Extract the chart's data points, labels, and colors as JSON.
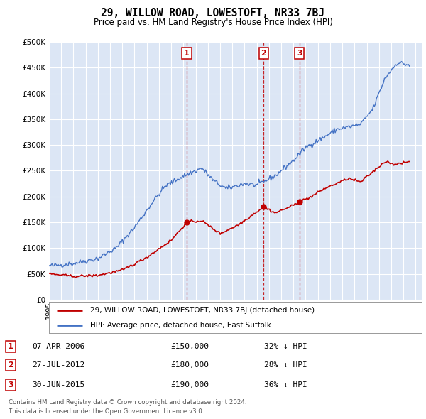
{
  "title": "29, WILLOW ROAD, LOWESTOFT, NR33 7BJ",
  "subtitle": "Price paid vs. HM Land Registry's House Price Index (HPI)",
  "background_color": "#ffffff",
  "plot_bg_color": "#dce6f5",
  "grid_color": "#ffffff",
  "hpi_color": "#4472c4",
  "price_color": "#c00000",
  "transactions": [
    {
      "num": 1,
      "date_x": 2006.27,
      "price": 150000,
      "label": "07-APR-2006",
      "pct": "32%"
    },
    {
      "num": 2,
      "date_x": 2012.57,
      "price": 180000,
      "label": "27-JUL-2012",
      "pct": "28%"
    },
    {
      "num": 3,
      "date_x": 2015.5,
      "price": 190000,
      "label": "30-JUN-2015",
      "pct": "36%"
    }
  ],
  "legend_label_price": "29, WILLOW ROAD, LOWESTOFT, NR33 7BJ (detached house)",
  "legend_label_hpi": "HPI: Average price, detached house, East Suffolk",
  "footer_line1": "Contains HM Land Registry data © Crown copyright and database right 2024.",
  "footer_line2": "This data is licensed under the Open Government Licence v3.0.",
  "ylim": [
    0,
    500000
  ],
  "xlim_start": 1995.0,
  "xlim_end": 2025.5,
  "yticks": [
    0,
    50000,
    100000,
    150000,
    200000,
    250000,
    300000,
    350000,
    400000,
    450000,
    500000
  ],
  "hpi_anchors_x": [
    1995.0,
    1997.0,
    1999.0,
    2000.5,
    2002.0,
    2003.5,
    2004.5,
    2006.0,
    2007.5,
    2008.5,
    2009.5,
    2011.0,
    2012.0,
    2013.5,
    2015.0,
    2016.0,
    2017.5,
    2018.5,
    2019.5,
    2020.5,
    2021.5,
    2022.5,
    2023.5,
    2024.5
  ],
  "hpi_anchors_y": [
    65000,
    70000,
    80000,
    100000,
    140000,
    190000,
    220000,
    240000,
    255000,
    230000,
    215000,
    225000,
    222000,
    240000,
    270000,
    295000,
    315000,
    330000,
    335000,
    340000,
    370000,
    430000,
    460000,
    455000
  ],
  "price_anchors_x": [
    1995.0,
    1997.0,
    1999.0,
    2001.0,
    2003.0,
    2005.0,
    2006.27,
    2007.5,
    2009.0,
    2010.5,
    2012.57,
    2013.5,
    2015.0,
    2015.5,
    2016.5,
    2017.5,
    2018.5,
    2019.5,
    2020.5,
    2021.5,
    2022.5,
    2023.5,
    2024.5
  ],
  "price_anchors_y": [
    50000,
    45000,
    47000,
    57000,
    82000,
    115000,
    150000,
    153000,
    128000,
    145000,
    180000,
    168000,
    183000,
    190000,
    200000,
    215000,
    225000,
    235000,
    228000,
    248000,
    268000,
    262000,
    268000
  ]
}
